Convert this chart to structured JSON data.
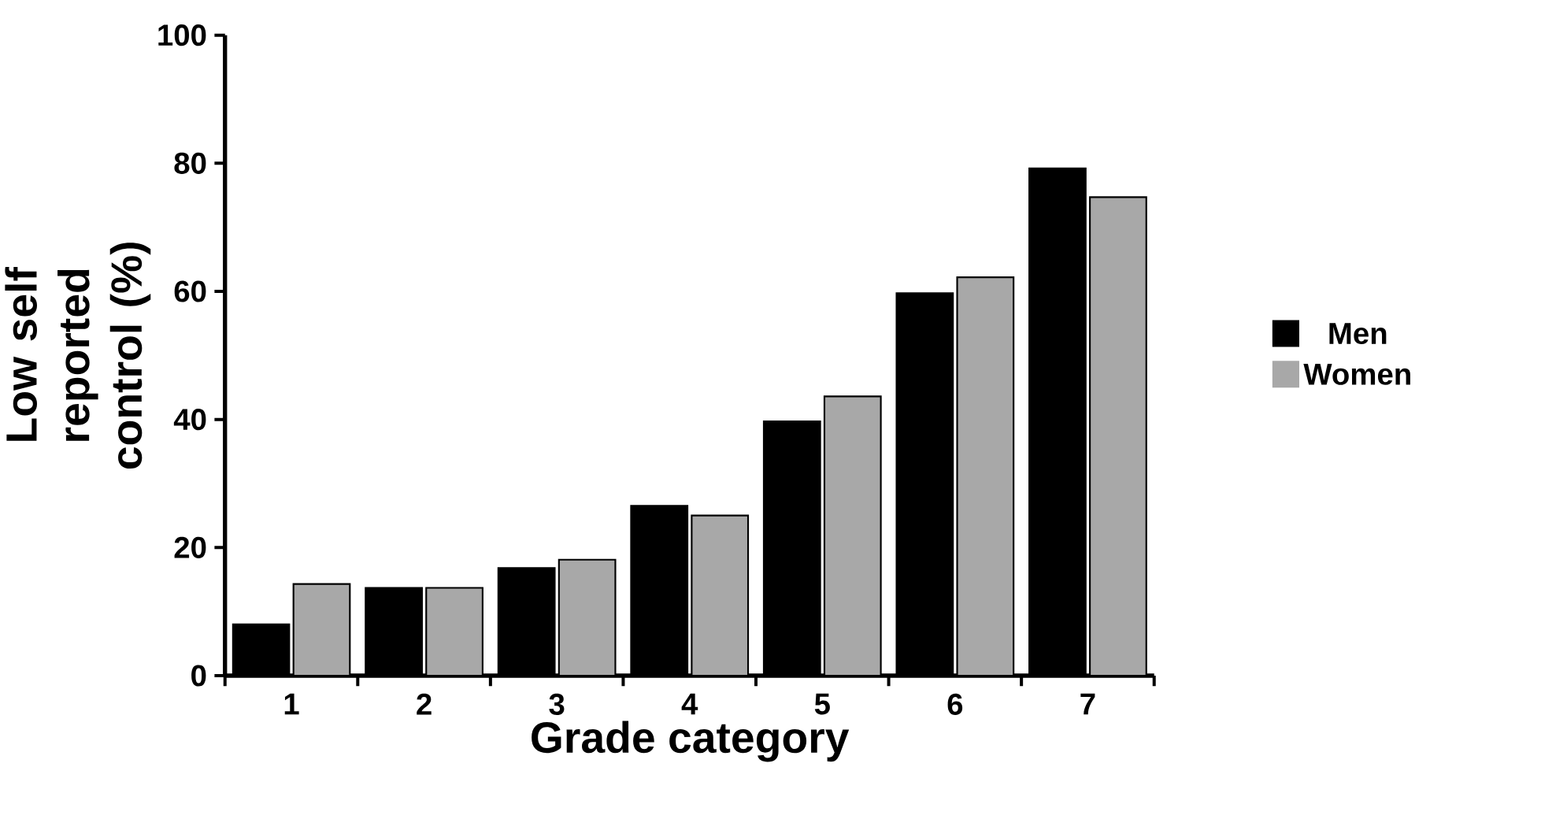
{
  "chart_data": {
    "type": "bar",
    "xlabel": "Grade  category",
    "ylabel": "Low self reported  control  (%)",
    "categories": [
      "1",
      "2",
      "3",
      "4",
      "5",
      "6",
      "7"
    ],
    "series": [
      {
        "name": "Men",
        "color": "#000000",
        "values": [
          8,
          13.7,
          16.8,
          26.5,
          39.7,
          59.7,
          79.2
        ]
      },
      {
        "name": "Women",
        "color": "#a8a8a8",
        "values": [
          14.3,
          13.7,
          18.1,
          25,
          43.6,
          62.2,
          74.7
        ]
      }
    ],
    "ylim": [
      0,
      100
    ],
    "yticks": [
      0,
      20,
      40,
      60,
      80,
      100
    ],
    "grid": false,
    "legend": "right"
  }
}
